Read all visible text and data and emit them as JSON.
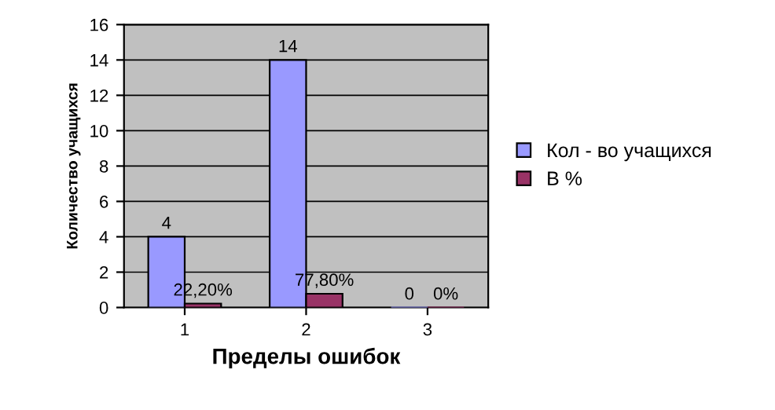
{
  "chart_data": {
    "type": "bar",
    "xlabel": "Пределы ошибок",
    "ylabel": "Количество учащихся",
    "categories": [
      "1",
      "2",
      "3"
    ],
    "series": [
      {
        "name": "Кол - во учащихся",
        "color": "#9999ff",
        "values": [
          4,
          14,
          0
        ],
        "value_labels": [
          "4",
          "14",
          "0"
        ]
      },
      {
        "name": "В %",
        "color": "#993366",
        "values": [
          0.222,
          0.778,
          0
        ],
        "value_labels": [
          "22,20%",
          "77,80%",
          "0%"
        ]
      }
    ],
    "ylim": [
      0,
      16
    ],
    "yticks": [
      0,
      2,
      4,
      6,
      8,
      10,
      12,
      14,
      16
    ],
    "grid": "y",
    "legend": "right"
  }
}
